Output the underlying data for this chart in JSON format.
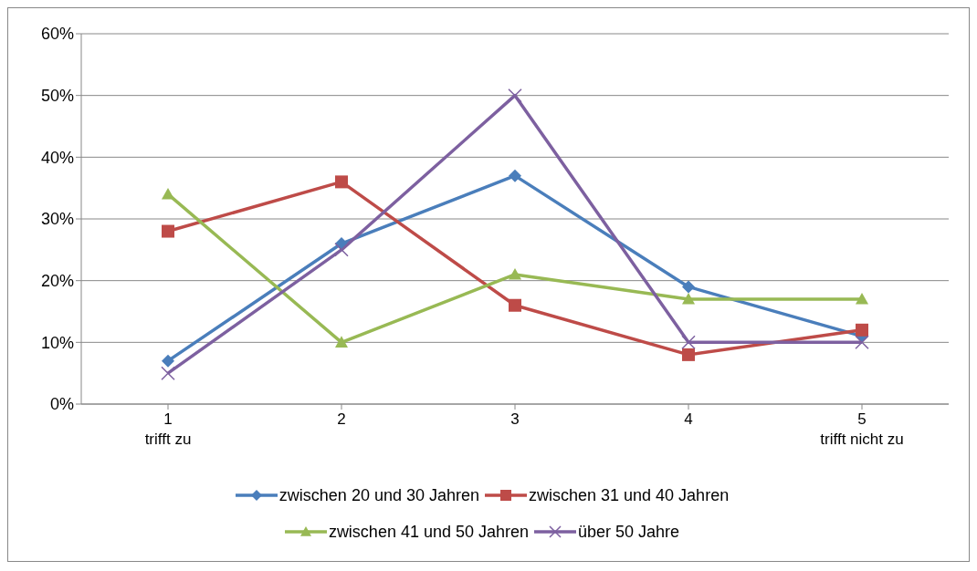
{
  "chart_data": {
    "type": "line",
    "categories": [
      "1\ntrifft zu",
      "2",
      "3",
      "4",
      "5\ntrifft nicht zu"
    ],
    "series": [
      {
        "name": "zwischen 20 und 30 Jahren",
        "color": "#4a7ebb",
        "marker": "diamond",
        "values": [
          7,
          26,
          37,
          19,
          11
        ]
      },
      {
        "name": "zwischen 31 und 40 Jahren",
        "color": "#be4b48",
        "marker": "square",
        "values": [
          28,
          36,
          16,
          8,
          12
        ]
      },
      {
        "name": "zwischen 41 und 50 Jahren",
        "color": "#98b954",
        "marker": "triangle",
        "values": [
          34,
          10,
          21,
          17,
          17
        ]
      },
      {
        "name": "über 50 Jahre",
        "color": "#7d60a0",
        "marker": "cross",
        "values": [
          5,
          25,
          50,
          10,
          10
        ]
      }
    ],
    "ylim": [
      0,
      60
    ],
    "yticks": [
      {
        "value": 0,
        "label": "0%"
      },
      {
        "value": 10,
        "label": "10%"
      },
      {
        "value": 20,
        "label": "20%"
      },
      {
        "value": 30,
        "label": "30%"
      },
      {
        "value": 40,
        "label": "40%"
      },
      {
        "value": 50,
        "label": "50%"
      },
      {
        "value": 60,
        "label": "60%"
      }
    ],
    "grid": "y",
    "legend": "bottom"
  }
}
